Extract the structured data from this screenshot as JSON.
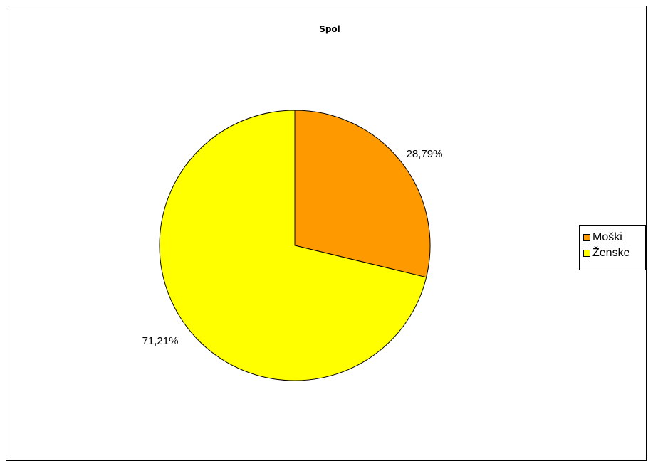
{
  "chart_data": {
    "type": "pie",
    "title": "Spol",
    "slices": [
      {
        "name": "Moški",
        "value": 28.79,
        "label": "28,79%",
        "color": "#FF9900"
      },
      {
        "name": "Ženske",
        "value": 71.21,
        "label": "71,21%",
        "color": "#FFFF00"
      }
    ],
    "legend": {
      "position": "right"
    }
  }
}
